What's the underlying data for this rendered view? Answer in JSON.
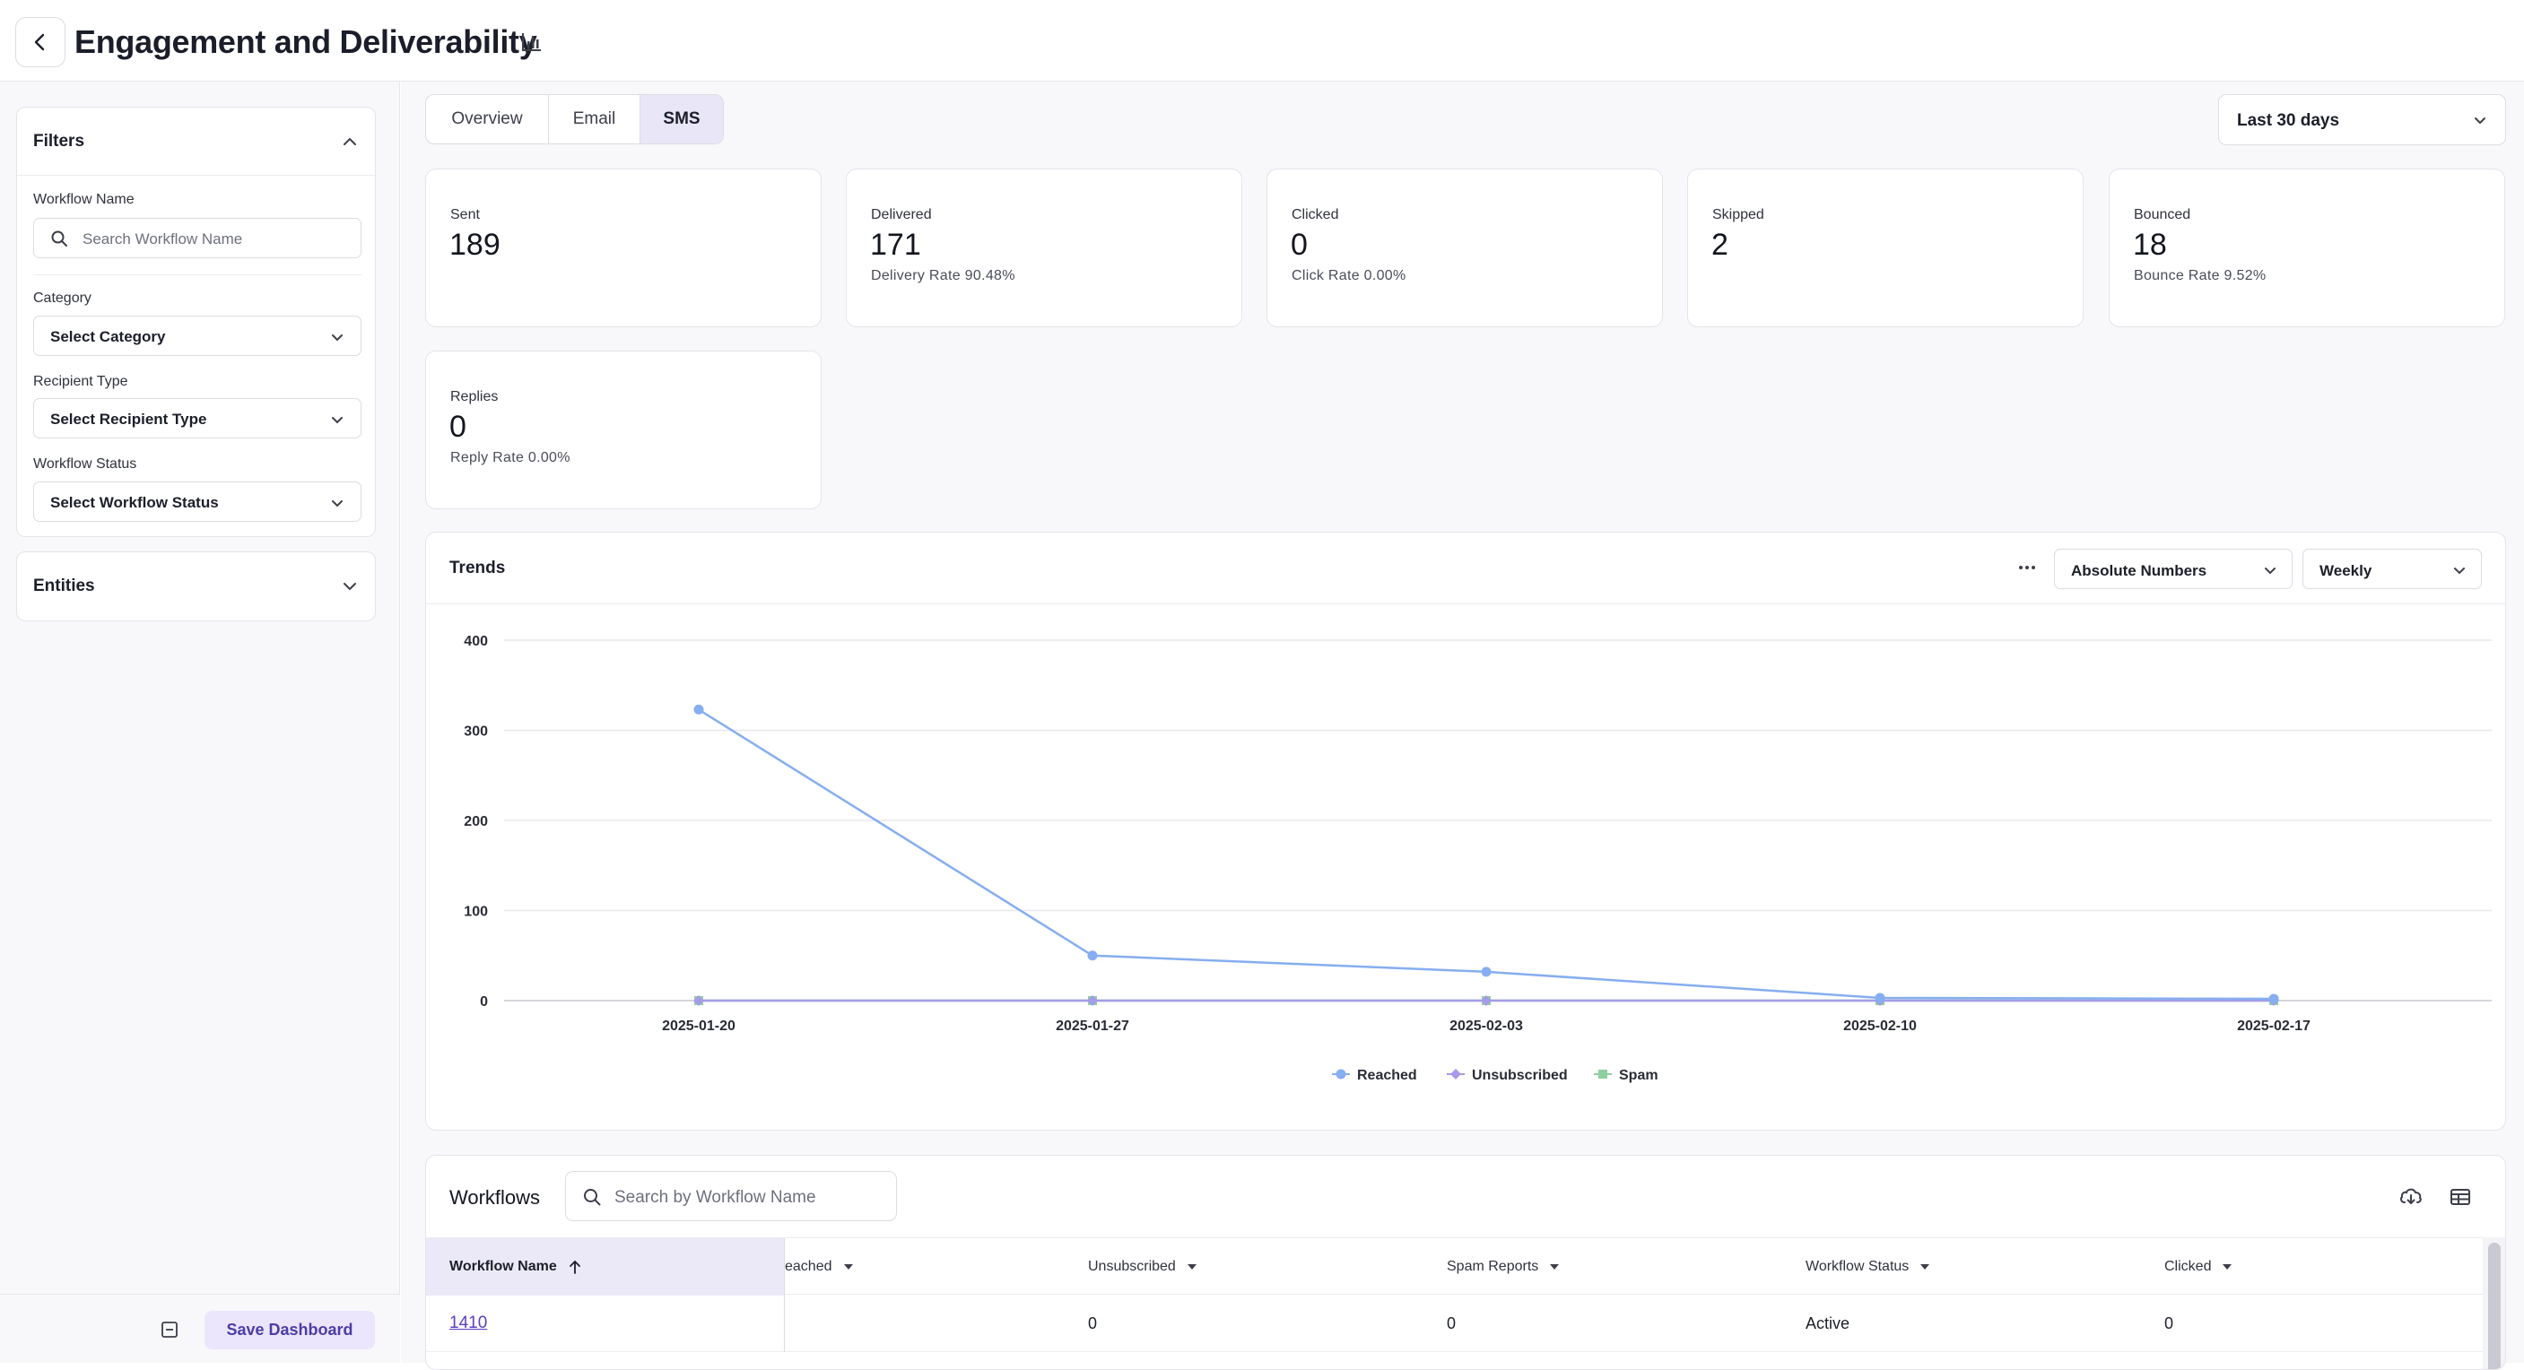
{
  "header": {
    "title": "Engagement and Deliverability"
  },
  "sidebar": {
    "filters_label": "Filters",
    "workflow_name_label": "Workflow Name",
    "workflow_name_placeholder": "Search Workflow Name",
    "category_label": "Category",
    "category_value": "Select Category",
    "recipient_type_label": "Recipient Type",
    "recipient_type_value": "Select Recipient Type",
    "workflow_status_label": "Workflow Status",
    "workflow_status_value": "Select Workflow Status",
    "entities_label": "Entities",
    "save_label": "Save Dashboard"
  },
  "tabs": [
    {
      "label": "Overview",
      "active": false
    },
    {
      "label": "Email",
      "active": false
    },
    {
      "label": "SMS",
      "active": true
    }
  ],
  "date_range": "Last 30 days",
  "cards": [
    {
      "label": "Sent",
      "value": "189",
      "rate": ""
    },
    {
      "label": "Delivered",
      "value": "171",
      "rate": "Delivery Rate 90.48%"
    },
    {
      "label": "Clicked",
      "value": "0",
      "rate": "Click Rate 0.00%"
    },
    {
      "label": "Skipped",
      "value": "2",
      "rate": ""
    },
    {
      "label": "Bounced",
      "value": "18",
      "rate": "Bounce Rate 9.52%"
    },
    {
      "label": "Replies",
      "value": "0",
      "rate": "Reply Rate 0.00%"
    }
  ],
  "trends": {
    "title": "Trends",
    "mode": "Absolute Numbers",
    "interval": "Weekly"
  },
  "chart_data": {
    "type": "line",
    "categories": [
      "2025-01-20",
      "2025-01-27",
      "2025-02-03",
      "2025-02-10",
      "2025-02-17"
    ],
    "series": [
      {
        "name": "Reached",
        "values": [
          323,
          50,
          32,
          3,
          2
        ],
        "color": "#86aef0",
        "marker": "circle"
      },
      {
        "name": "Unsubscribed",
        "values": [
          0,
          0,
          0,
          0,
          0
        ],
        "color": "#a69be8",
        "marker": "diamond"
      },
      {
        "name": "Spam",
        "values": [
          0,
          0,
          0,
          0,
          0
        ],
        "color": "#8fcf9e",
        "marker": "square"
      }
    ],
    "yticks": [
      0,
      100,
      200,
      300,
      400
    ],
    "ylim": [
      0,
      400
    ],
    "grid": true,
    "legend": "bottom-center"
  },
  "workflows": {
    "title": "Workflows",
    "search_placeholder": "Search by Workflow Name",
    "columns": [
      "Workflow Name",
      "eached",
      "Unsubscribed",
      "Spam Reports",
      "Workflow Status",
      "Clicked"
    ],
    "rows": [
      {
        "name": "1410",
        "reached": "",
        "unsubscribed": "0",
        "spam": "0",
        "status": "Active",
        "clicked": "0"
      }
    ]
  }
}
